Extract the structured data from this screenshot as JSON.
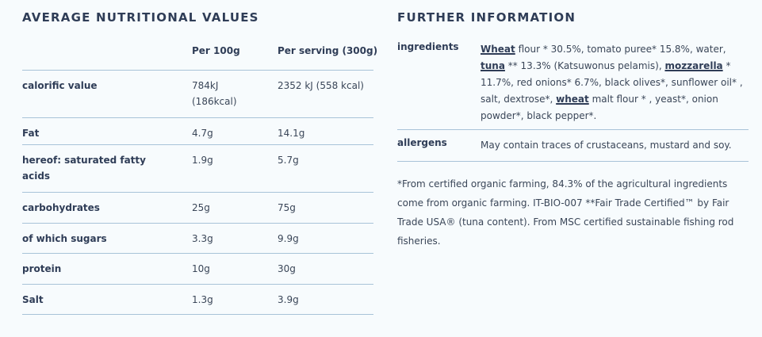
{
  "nutrition": {
    "title": "AVERAGE NUTRITIONAL VALUES",
    "col1": "Per 100g",
    "col2": "Per serving (300g)",
    "rows": [
      {
        "label": "calorific value",
        "v1_line1": "784kJ",
        "v1_line2": "(186kcal)",
        "v2": "2352 kJ (558 kcal)"
      },
      {
        "label": "Fat",
        "v1": "4.7g",
        "v2": "14.1g"
      },
      {
        "label_line1": "hereof: saturated fatty",
        "label_line2": "acids",
        "v1": "1.9g",
        "v2": "5.7g"
      },
      {
        "label": "carbohydrates",
        "v1": "25g",
        "v2": "75g"
      },
      {
        "label": "of which sugars",
        "v1": "3.3g",
        "v2": "9.9g"
      },
      {
        "label": "protein",
        "v1": "10g",
        "v2": "30g"
      },
      {
        "label": "Salt",
        "v1": "1.3g",
        "v2": "3.9g"
      }
    ]
  },
  "further": {
    "title": "FURTHER INFORMATION",
    "ingredients_label": "ingredients",
    "ing": {
      "wheat": "Wheat",
      "t1": " flour * 30.5%, tomato puree* 15.8%, water, ",
      "tuna": "tuna",
      "t2": " ** 13.3% (Katsuwonus pelamis), ",
      "mozzarella": "mozzarella",
      "t3": " * 11.7%, red onions* 6.7%, black olives*, sunflower oil* , salt, dextrose*, ",
      "wheat2": "wheat",
      "t4": " malt flour * , yeast*, onion powder*, black pepper*."
    },
    "allergens_label": "allergens",
    "allergens_text": "May contain traces of crustaceans, mustard and soy.",
    "footnote": "*From certified organic farming, 84.3% of the agricultural ingredients come from organic farming. IT-BIO-007 **Fair Trade Certified™ by Fair Trade USA® (tuna content). From MSC certified sustainable fishing rod fisheries."
  }
}
